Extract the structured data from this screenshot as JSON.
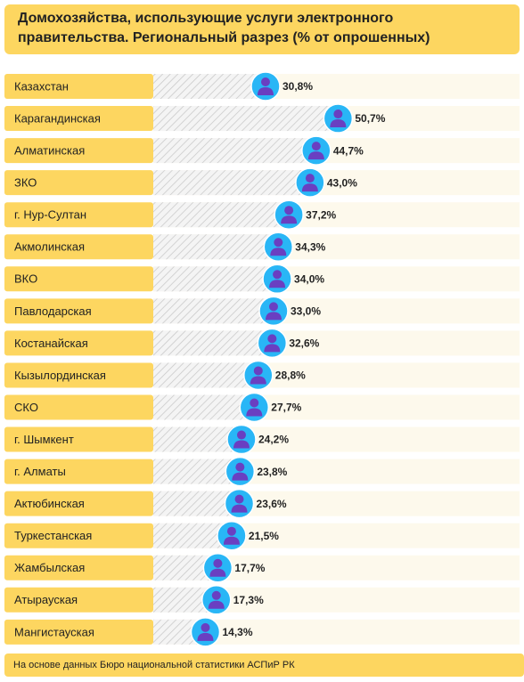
{
  "chart_data": {
    "type": "lollipop",
    "title": "Домохозяйства, использующие услуги электронного правительства. Региональный разрез (% от опрошенных)",
    "categories": [
      "Казахстан",
      "Карагандинская",
      "Алматинская",
      "ЗКО",
      "г. Нур-Султан",
      "Акмолинская",
      "ВКО",
      "Павлодарская",
      "Костанайская",
      "Кызылординская",
      "СКО",
      "г. Шымкент",
      "г. Алматы",
      "Актюбинская",
      "Туркестанская",
      "Жамбылская",
      "Атырауская",
      "Мангистауская"
    ],
    "values": [
      30.8,
      50.7,
      44.7,
      43.0,
      37.2,
      34.3,
      34.0,
      33.0,
      32.6,
      28.8,
      27.7,
      24.2,
      23.8,
      23.6,
      21.5,
      17.7,
      17.3,
      14.3
    ],
    "value_labels": [
      "30,8%",
      "50,7%",
      "44,7%",
      "43,0%",
      "37,2%",
      "34,3%",
      "34,0%",
      "33,0%",
      "32,6%",
      "28,8%",
      "27,7%",
      "24,2%",
      "23,8%",
      "23,6%",
      "21,5%",
      "17,7%",
      "17,3%",
      "14,3%"
    ],
    "color": "#29b6f6",
    "source": "На основе данных Бюро национальной статистики АСПиР РК"
  }
}
